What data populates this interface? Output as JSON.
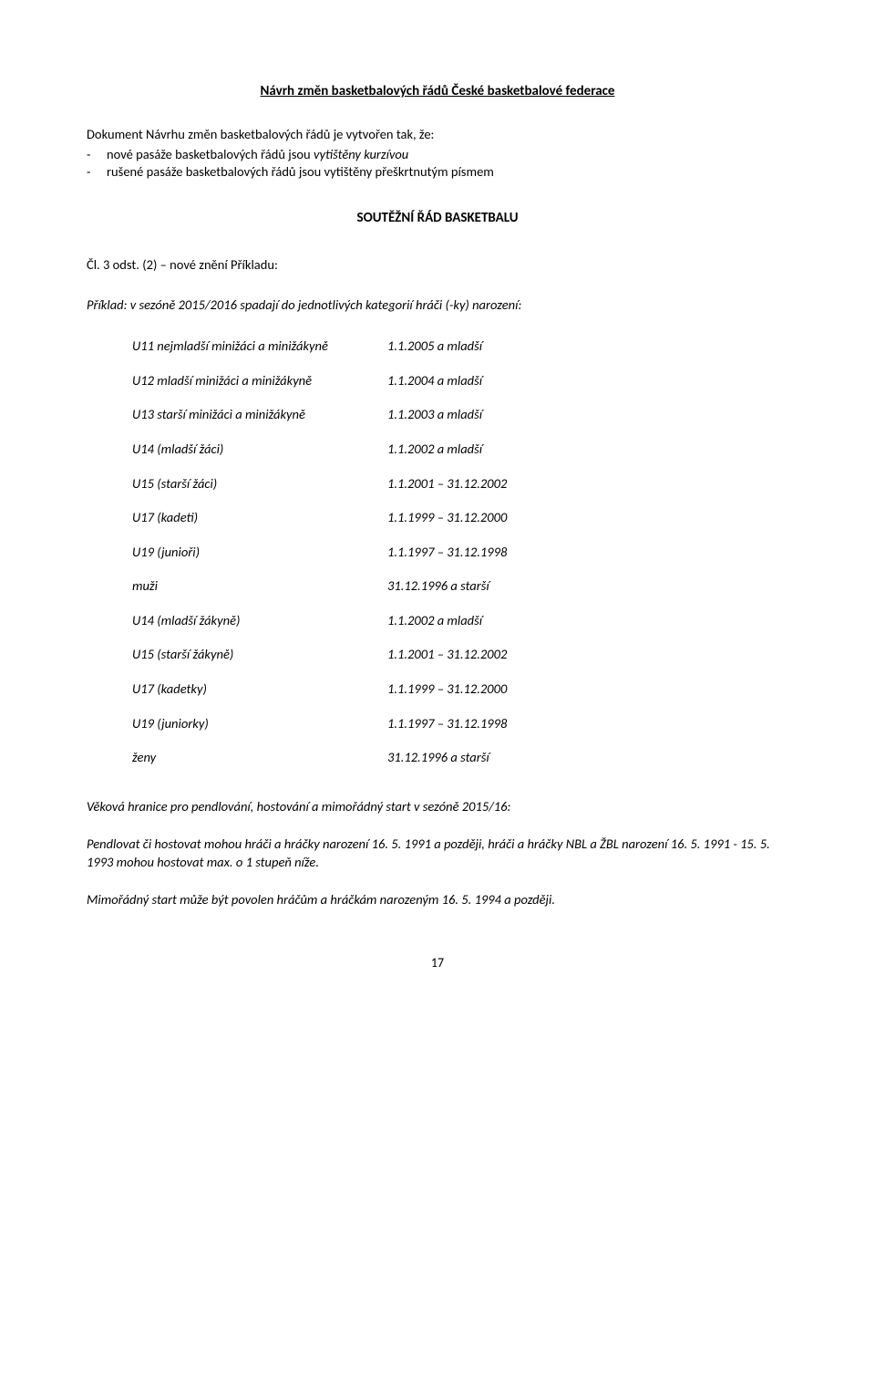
{
  "title": "Návrh změn basketbalových řádů České basketbalové federace",
  "intro": "Dokument Návrhu změn basketbalových řádů je vytvořen tak, že:",
  "bullet1_prefix": "nové pasáže basketbalových řádů jsou ",
  "bullet1_italic": "vytištěny kurzívou",
  "bullet2": "rušené pasáže basketbalových řádů jsou vytištěny přeškrtnutým písmem",
  "section_head": "SOUTĚŽNÍ ŘÁD BASKETBALU",
  "clause": "Čl. 3 odst. (2) – nové znění Příkladu:",
  "example_intro": "Příklad: v sezóně 2015/2016 spadají do jednotlivých kategorií hráči (-ky) narození:",
  "rows": [
    {
      "c1": "U11 nejmladší minižáci a minižákyně",
      "c2": "1.1.2005 a mladší",
      "gap": false
    },
    {
      "c1": "U12 mladší minižáci a minižákyně",
      "c2": "1.1.2004 a mladší",
      "gap": true
    },
    {
      "c1": "U13 starší minižáci a minižákyně",
      "c2": "1.1.2003 a mladší",
      "gap": true
    },
    {
      "c1": "U14 (mladší žáci)",
      "c2": "1.1.2002 a mladší",
      "gap": true
    },
    {
      "c1": "U15 (starší žáci)",
      "c2": "1.1.2001 – 31.12.2002",
      "gap": true
    },
    {
      "c1": "U17 (kadeti)",
      "c2": "1.1.1999 – 31.12.2000",
      "gap": true
    },
    {
      "c1": "U19 (junioři)",
      "c2": "1.1.1997 – 31.12.1998",
      "gap": true
    },
    {
      "c1": "muži",
      "c2": "31.12.1996 a starší",
      "gap": true
    },
    {
      "c1": "U14 (mladší žákyně)",
      "c2": "1.1.2002 a mladší",
      "gap": true
    },
    {
      "c1": "U15 (starší žákyně)",
      "c2": "1.1.2001 – 31.12.2002",
      "gap": true
    },
    {
      "c1": "U17 (kadetky)",
      "c2": "1.1.1999 – 31.12.2000",
      "gap": true
    },
    {
      "c1": "U19 (juniorky)",
      "c2": "1.1.1997 – 31.12.1998",
      "gap": true
    },
    {
      "c1": "ženy",
      "c2": "31.12.1996 a starší",
      "gap": true
    }
  ],
  "age_heading": "Věková hranice pro pendlování, hostování a mimořádný start v sezóně 2015/16:",
  "pendl": "Pendlovat či hostovat mohou hráči a hráčky narození 16. 5. 1991 a později, hráči a hráčky NBL a ŽBL narození 16. 5. 1991 - 15. 5. 1993 mohou hostovat max. o 1 stupeň níže.",
  "extra_start": "Mimořádný start může být povolen hráčům a hráčkám narozeným 16. 5. 1994 a později.",
  "page_number": "17"
}
